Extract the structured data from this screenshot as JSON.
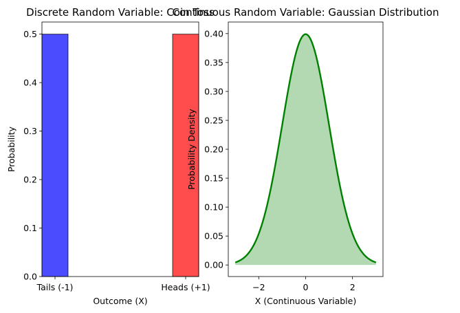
{
  "chart_data": [
    {
      "type": "bar",
      "title": "Discrete Random Variable: Coin Toss",
      "xlabel": "Outcome (X)",
      "ylabel": "Probability",
      "categories": [
        "Tails (-1)",
        "Heads (+1)"
      ],
      "x": [
        -1,
        1
      ],
      "values": [
        0.5,
        0.5
      ],
      "colors": [
        "#0000ff",
        "#ff0000"
      ],
      "bar_alpha": 0.7,
      "bar_width": 0.4,
      "xlim": [
        -1.2,
        1.2
      ],
      "ylim": [
        0,
        0.525
      ],
      "yticks": [
        "0.0",
        "0.1",
        "0.2",
        "0.3",
        "0.4",
        "0.5"
      ],
      "grid": false
    },
    {
      "type": "area",
      "title": "Continuous Random Variable: Gaussian Distribution",
      "xlabel": "X (Continuous Variable)",
      "ylabel": "Probability Density",
      "distribution": {
        "mean": 0,
        "std": 1
      },
      "x_range": [
        -3,
        3
      ],
      "xlim": [
        -3.3,
        3.3
      ],
      "ylim": [
        -0.02,
        0.42
      ],
      "xticks": [
        "−2",
        "0",
        "2"
      ],
      "yticks": [
        "0.00",
        "0.05",
        "0.10",
        "0.15",
        "0.20",
        "0.25",
        "0.30",
        "0.35",
        "0.40"
      ],
      "line_color": "#008000",
      "fill_color": "#008000",
      "fill_alpha": 0.3,
      "grid": false
    }
  ]
}
